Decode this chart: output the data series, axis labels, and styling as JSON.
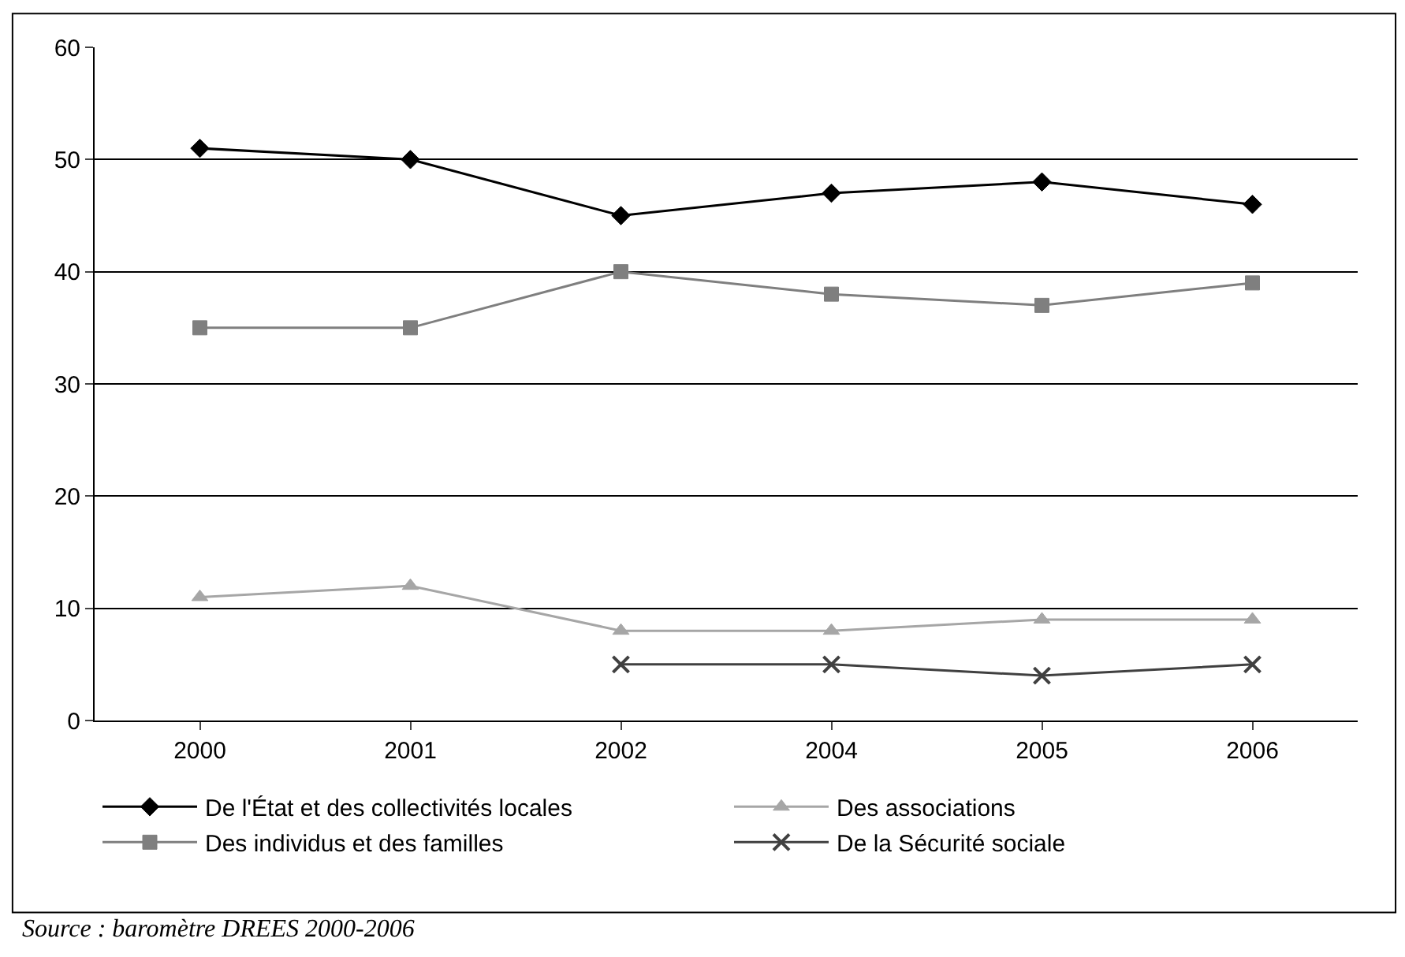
{
  "chart_data": {
    "type": "line",
    "categories": [
      "2000",
      "2001",
      "2002",
      "2004",
      "2005",
      "2006"
    ],
    "series": [
      {
        "name": "De l'État et des collectivités locales",
        "color": "#000000",
        "marker": "diamond",
        "values": [
          51,
          50,
          45,
          47,
          48,
          46
        ]
      },
      {
        "name": "Des associations",
        "color": "#a6a6a6",
        "marker": "triangle",
        "values": [
          11,
          12,
          8,
          8,
          9,
          9
        ]
      },
      {
        "name": "Des individus et des familles",
        "color": "#7f7f7f",
        "marker": "square",
        "values": [
          35,
          35,
          40,
          38,
          37,
          39
        ]
      },
      {
        "name": "De la Sécurité sociale",
        "color": "#404040",
        "marker": "cross",
        "values": [
          null,
          null,
          5,
          5,
          4,
          5
        ]
      }
    ],
    "ylim": [
      0,
      60
    ],
    "yticks": [
      0,
      10,
      20,
      30,
      40,
      50,
      60
    ],
    "grid": "y",
    "legend": "bottom",
    "annotations": [
      "Source : baromètre DREES 2000-2006"
    ]
  }
}
